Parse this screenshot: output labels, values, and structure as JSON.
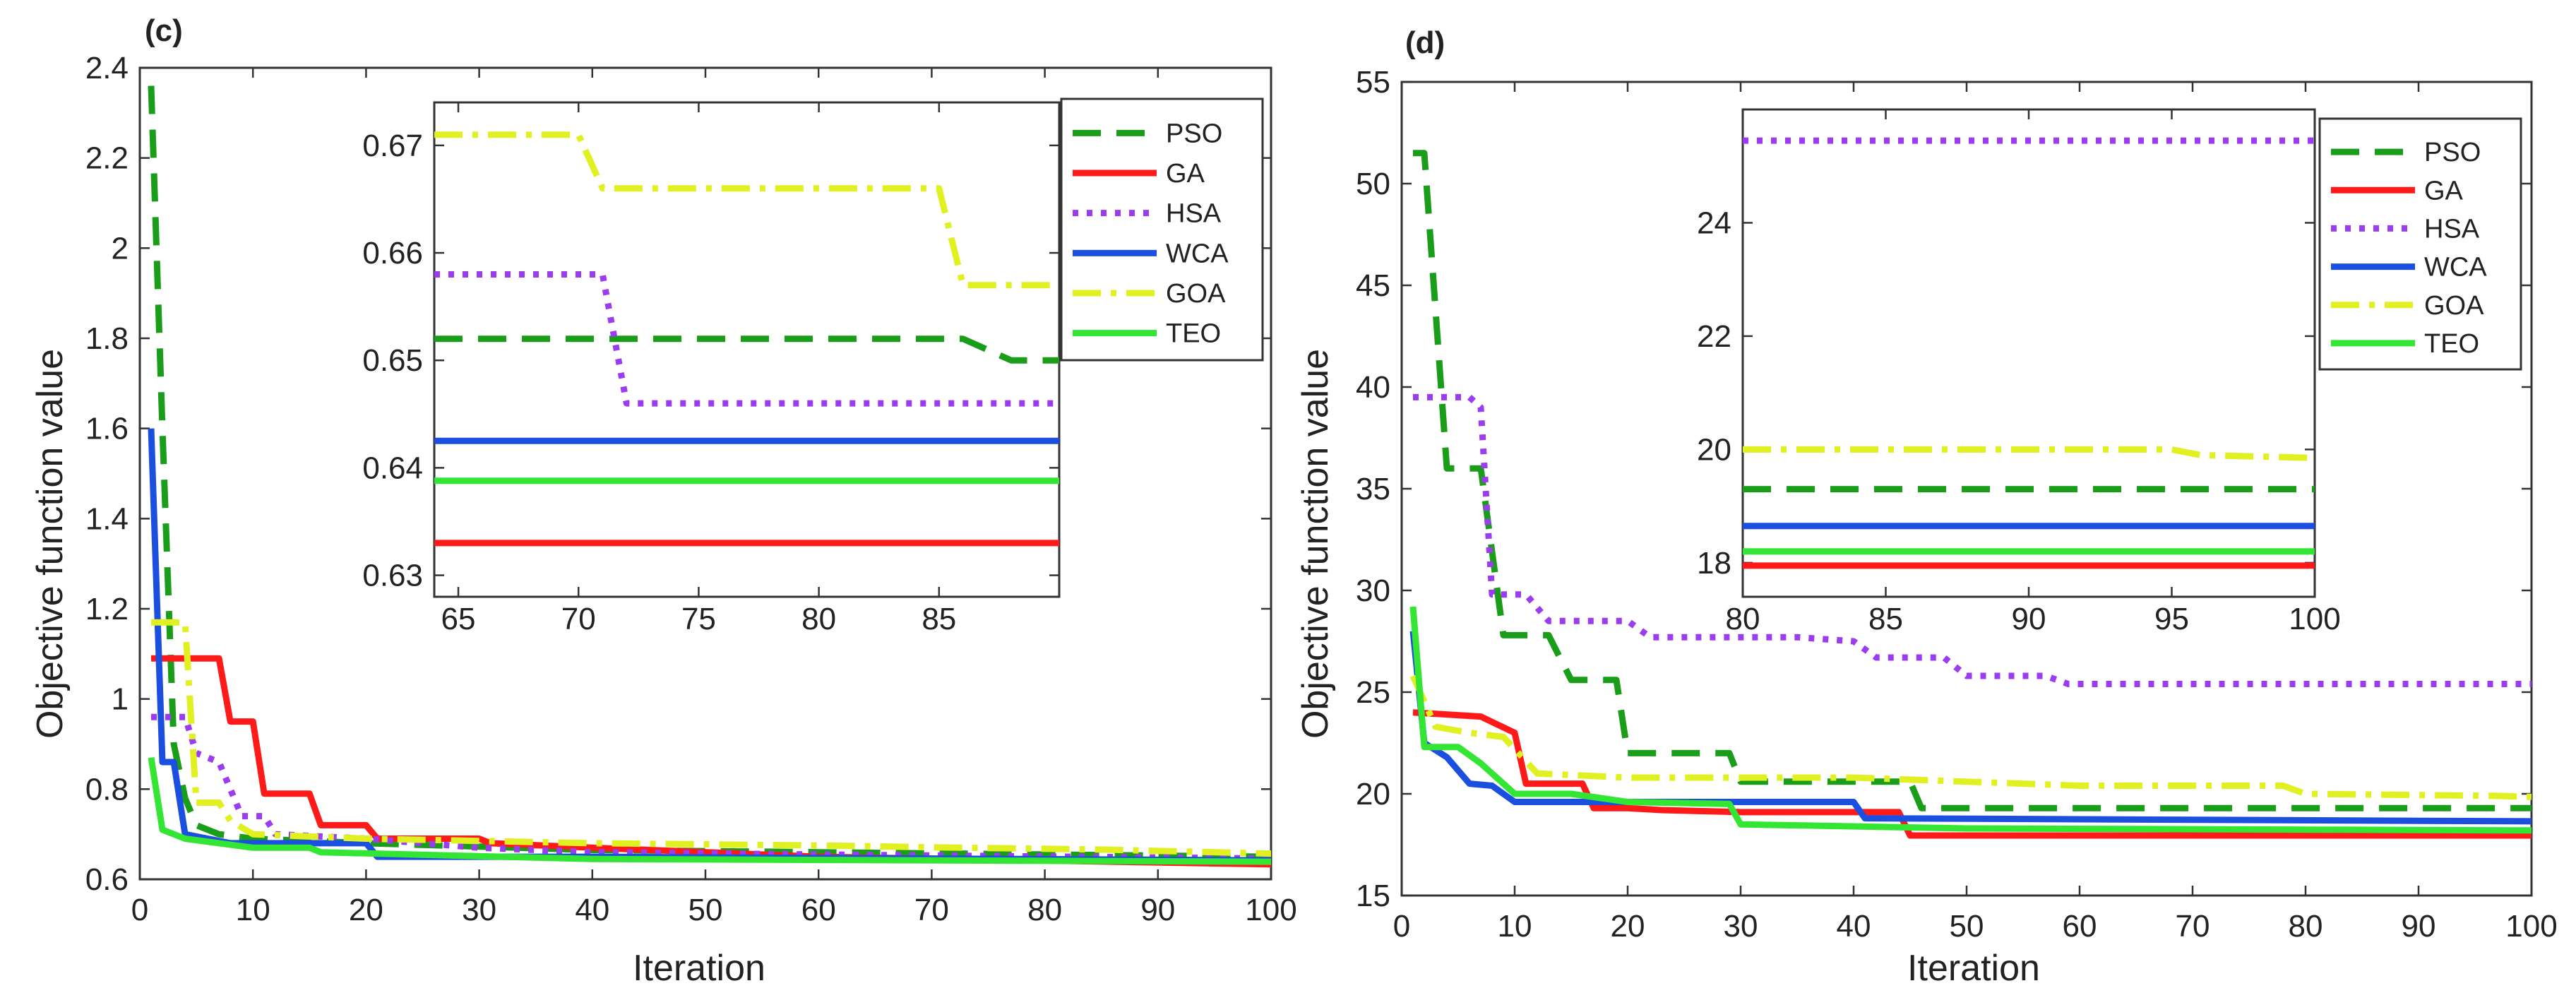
{
  "chart_data": [
    {
      "type": "line",
      "panel": "(c)",
      "xlabel": "Iteration",
      "ylabel": "Objective function value",
      "xlim": [
        0,
        100
      ],
      "ylim": [
        0.6,
        2.4
      ],
      "xticks": [
        0,
        10,
        20,
        30,
        40,
        50,
        60,
        70,
        80,
        90,
        100
      ],
      "yticks": [
        0.6,
        0.8,
        1,
        1.2,
        1.4,
        1.6,
        1.8,
        2,
        2.2,
        2.4
      ],
      "series": [
        {
          "name": "PSO",
          "color": "#1a9e1a",
          "dash": "dash",
          "points": [
            [
              1,
              2.36
            ],
            [
              2,
              1.6
            ],
            [
              3,
              0.9
            ],
            [
              4,
              0.78
            ],
            [
              5,
              0.72
            ],
            [
              7,
              0.7
            ],
            [
              10,
              0.69
            ],
            [
              20,
              0.68
            ],
            [
              40,
              0.665
            ],
            [
              60,
              0.66
            ],
            [
              80,
              0.655
            ],
            [
              100,
              0.65
            ]
          ]
        },
        {
          "name": "GA",
          "color": "#ff1a1a",
          "dash": "solid",
          "points": [
            [
              1,
              1.09
            ],
            [
              7,
              1.09
            ],
            [
              8,
              0.95
            ],
            [
              10,
              0.95
            ],
            [
              11,
              0.79
            ],
            [
              15,
              0.79
            ],
            [
              16,
              0.72
            ],
            [
              20,
              0.72
            ],
            [
              21,
              0.69
            ],
            [
              30,
              0.69
            ],
            [
              31,
              0.68
            ],
            [
              40,
              0.67
            ],
            [
              60,
              0.65
            ],
            [
              100,
              0.633
            ]
          ]
        },
        {
          "name": "HSA",
          "color": "#9c3cf0",
          "dash": "dot",
          "points": [
            [
              1,
              0.96
            ],
            [
              4,
              0.96
            ],
            [
              5,
              0.88
            ],
            [
              7,
              0.86
            ],
            [
              8,
              0.8
            ],
            [
              9,
              0.74
            ],
            [
              11,
              0.74
            ],
            [
              12,
              0.7
            ],
            [
              20,
              0.69
            ],
            [
              30,
              0.67
            ],
            [
              40,
              0.66
            ],
            [
              60,
              0.655
            ],
            [
              100,
              0.646
            ]
          ]
        },
        {
          "name": "WCA",
          "color": "#1a4fe0",
          "dash": "solid",
          "points": [
            [
              1,
              1.6
            ],
            [
              2,
              0.86
            ],
            [
              3,
              0.86
            ],
            [
              4,
              0.7
            ],
            [
              8,
              0.68
            ],
            [
              20,
              0.68
            ],
            [
              21,
              0.65
            ],
            [
              40,
              0.65
            ],
            [
              100,
              0.642
            ]
          ]
        },
        {
          "name": "GOA",
          "color": "#e0f020",
          "dash": "dashdot",
          "points": [
            [
              1,
              1.17
            ],
            [
              4,
              1.17
            ],
            [
              5,
              0.77
            ],
            [
              7,
              0.77
            ],
            [
              8,
              0.73
            ],
            [
              10,
              0.7
            ],
            [
              20,
              0.69
            ],
            [
              40,
              0.68
            ],
            [
              60,
              0.675
            ],
            [
              70,
              0.671
            ],
            [
              85,
              0.666
            ],
            [
              100,
              0.657
            ]
          ]
        },
        {
          "name": "TEO",
          "color": "#33e633",
          "dash": "solid",
          "points": [
            [
              1,
              0.87
            ],
            [
              2,
              0.71
            ],
            [
              4,
              0.69
            ],
            [
              10,
              0.67
            ],
            [
              15,
              0.67
            ],
            [
              16,
              0.66
            ],
            [
              40,
              0.645
            ],
            [
              100,
              0.639
            ]
          ]
        }
      ],
      "inset": {
        "xlim": [
          64,
          90
        ],
        "ylim": [
          0.628,
          0.674
        ],
        "xticks": [
          65,
          70,
          75,
          80,
          85
        ],
        "yticks": [
          0.63,
          0.64,
          0.65,
          0.66,
          0.67
        ],
        "series": [
          {
            "name": "PSO",
            "points": [
              [
                64,
                0.652
              ],
              [
                86,
                0.652
              ],
              [
                88,
                0.65
              ],
              [
                90,
                0.65
              ]
            ]
          },
          {
            "name": "GA",
            "points": [
              [
                64,
                0.633
              ],
              [
                90,
                0.633
              ]
            ]
          },
          {
            "name": "HSA",
            "points": [
              [
                64,
                0.658
              ],
              [
                71,
                0.658
              ],
              [
                72,
                0.646
              ],
              [
                90,
                0.646
              ]
            ]
          },
          {
            "name": "WCA",
            "points": [
              [
                64,
                0.6425
              ],
              [
                90,
                0.6425
              ]
            ]
          },
          {
            "name": "GOA",
            "points": [
              [
                64,
                0.671
              ],
              [
                70,
                0.671
              ],
              [
                71,
                0.666
              ],
              [
                85,
                0.666
              ],
              [
                86,
                0.657
              ],
              [
                90,
                0.657
              ]
            ]
          },
          {
            "name": "TEO",
            "points": [
              [
                64,
                0.6388
              ],
              [
                90,
                0.6388
              ]
            ]
          }
        ]
      },
      "legend": [
        "PSO",
        "GA",
        "HSA",
        "WCA",
        "GOA",
        "TEO"
      ]
    },
    {
      "type": "line",
      "panel": "(d)",
      "xlabel": "Iteration",
      "ylabel": "Objective function value",
      "xlim": [
        0,
        100
      ],
      "ylim": [
        15,
        55
      ],
      "xticks": [
        0,
        10,
        20,
        30,
        40,
        50,
        60,
        70,
        80,
        90,
        100
      ],
      "yticks": [
        15,
        20,
        25,
        30,
        35,
        40,
        45,
        50,
        55
      ],
      "series": [
        {
          "name": "PSO",
          "color": "#1a9e1a",
          "dash": "dash",
          "points": [
            [
              1,
              51.5
            ],
            [
              2,
              51.5
            ],
            [
              4,
              36
            ],
            [
              7,
              36
            ],
            [
              9,
              27.8
            ],
            [
              13,
              27.8
            ],
            [
              15,
              25.6
            ],
            [
              19,
              25.6
            ],
            [
              20,
              22
            ],
            [
              29,
              22
            ],
            [
              30,
              20.6
            ],
            [
              45,
              20.6
            ],
            [
              46,
              19.3
            ],
            [
              100,
              19.3
            ]
          ]
        },
        {
          "name": "GA",
          "color": "#ff1a1a",
          "dash": "solid",
          "points": [
            [
              1,
              24
            ],
            [
              7,
              23.8
            ],
            [
              10,
              23
            ],
            [
              11,
              20.5
            ],
            [
              16,
              20.5
            ],
            [
              17,
              19.3
            ],
            [
              20,
              19.3
            ],
            [
              23,
              19.2
            ],
            [
              30,
              19.1
            ],
            [
              44,
              19.1
            ],
            [
              45,
              17.95
            ],
            [
              100,
              17.95
            ]
          ]
        },
        {
          "name": "HSA",
          "color": "#9c3cf0",
          "dash": "dot",
          "points": [
            [
              1,
              39.5
            ],
            [
              6,
              39.5
            ],
            [
              7,
              39
            ],
            [
              8,
              29.8
            ],
            [
              11,
              29.8
            ],
            [
              13,
              28.5
            ],
            [
              20,
              28.5
            ],
            [
              22,
              27.7
            ],
            [
              35,
              27.7
            ],
            [
              40,
              27.5
            ],
            [
              42,
              26.7
            ],
            [
              48,
              26.7
            ],
            [
              50,
              25.8
            ],
            [
              57,
              25.8
            ],
            [
              59,
              25.4
            ],
            [
              100,
              25.4
            ]
          ]
        },
        {
          "name": "WCA",
          "color": "#1a4fe0",
          "dash": "solid",
          "points": [
            [
              1,
              28
            ],
            [
              2,
              22.5
            ],
            [
              4,
              21.8
            ],
            [
              6,
              20.5
            ],
            [
              8,
              20.4
            ],
            [
              10,
              19.6
            ],
            [
              20,
              19.6
            ],
            [
              40,
              19.6
            ],
            [
              41,
              18.8
            ],
            [
              100,
              18.65
            ]
          ]
        },
        {
          "name": "GOA",
          "color": "#e0f020",
          "dash": "dashdot",
          "points": [
            [
              1,
              25.8
            ],
            [
              3,
              23.3
            ],
            [
              6,
              23
            ],
            [
              9,
              22.8
            ],
            [
              12,
              21
            ],
            [
              20,
              20.8
            ],
            [
              40,
              20.8
            ],
            [
              60,
              20.4
            ],
            [
              78,
              20.4
            ],
            [
              80,
              20
            ],
            [
              97,
              19.9
            ],
            [
              100,
              19.85
            ]
          ]
        },
        {
          "name": "TEO",
          "color": "#33e633",
          "dash": "solid",
          "points": [
            [
              1,
              29.2
            ],
            [
              2,
              22.3
            ],
            [
              5,
              22.3
            ],
            [
              7,
              21.5
            ],
            [
              10,
              20
            ],
            [
              15,
              20
            ],
            [
              20,
              19.6
            ],
            [
              29,
              19.5
            ],
            [
              30,
              18.5
            ],
            [
              50,
              18.3
            ],
            [
              100,
              18.2
            ]
          ]
        }
      ],
      "inset": {
        "xlim": [
          80,
          100
        ],
        "ylim": [
          17.4,
          26
        ],
        "xticks": [
          80,
          85,
          90,
          95,
          100
        ],
        "yticks": [
          18,
          20,
          22,
          24
        ],
        "series": [
          {
            "name": "PSO",
            "points": [
              [
                80,
                19.3
              ],
              [
                100,
                19.3
              ]
            ]
          },
          {
            "name": "GA",
            "points": [
              [
                80,
                17.95
              ],
              [
                100,
                17.95
              ]
            ]
          },
          {
            "name": "HSA",
            "points": [
              [
                80,
                25.45
              ],
              [
                100,
                25.45
              ]
            ]
          },
          {
            "name": "WCA",
            "points": [
              [
                80,
                18.65
              ],
              [
                100,
                18.65
              ]
            ]
          },
          {
            "name": "GOA",
            "points": [
              [
                80,
                20
              ],
              [
                95,
                20
              ],
              [
                96,
                19.9
              ],
              [
                100,
                19.85
              ]
            ]
          },
          {
            "name": "TEO",
            "points": [
              [
                80,
                18.2
              ],
              [
                100,
                18.2
              ]
            ]
          }
        ]
      },
      "legend": [
        "PSO",
        "GA",
        "HSA",
        "WCA",
        "GOA",
        "TEO"
      ]
    }
  ]
}
